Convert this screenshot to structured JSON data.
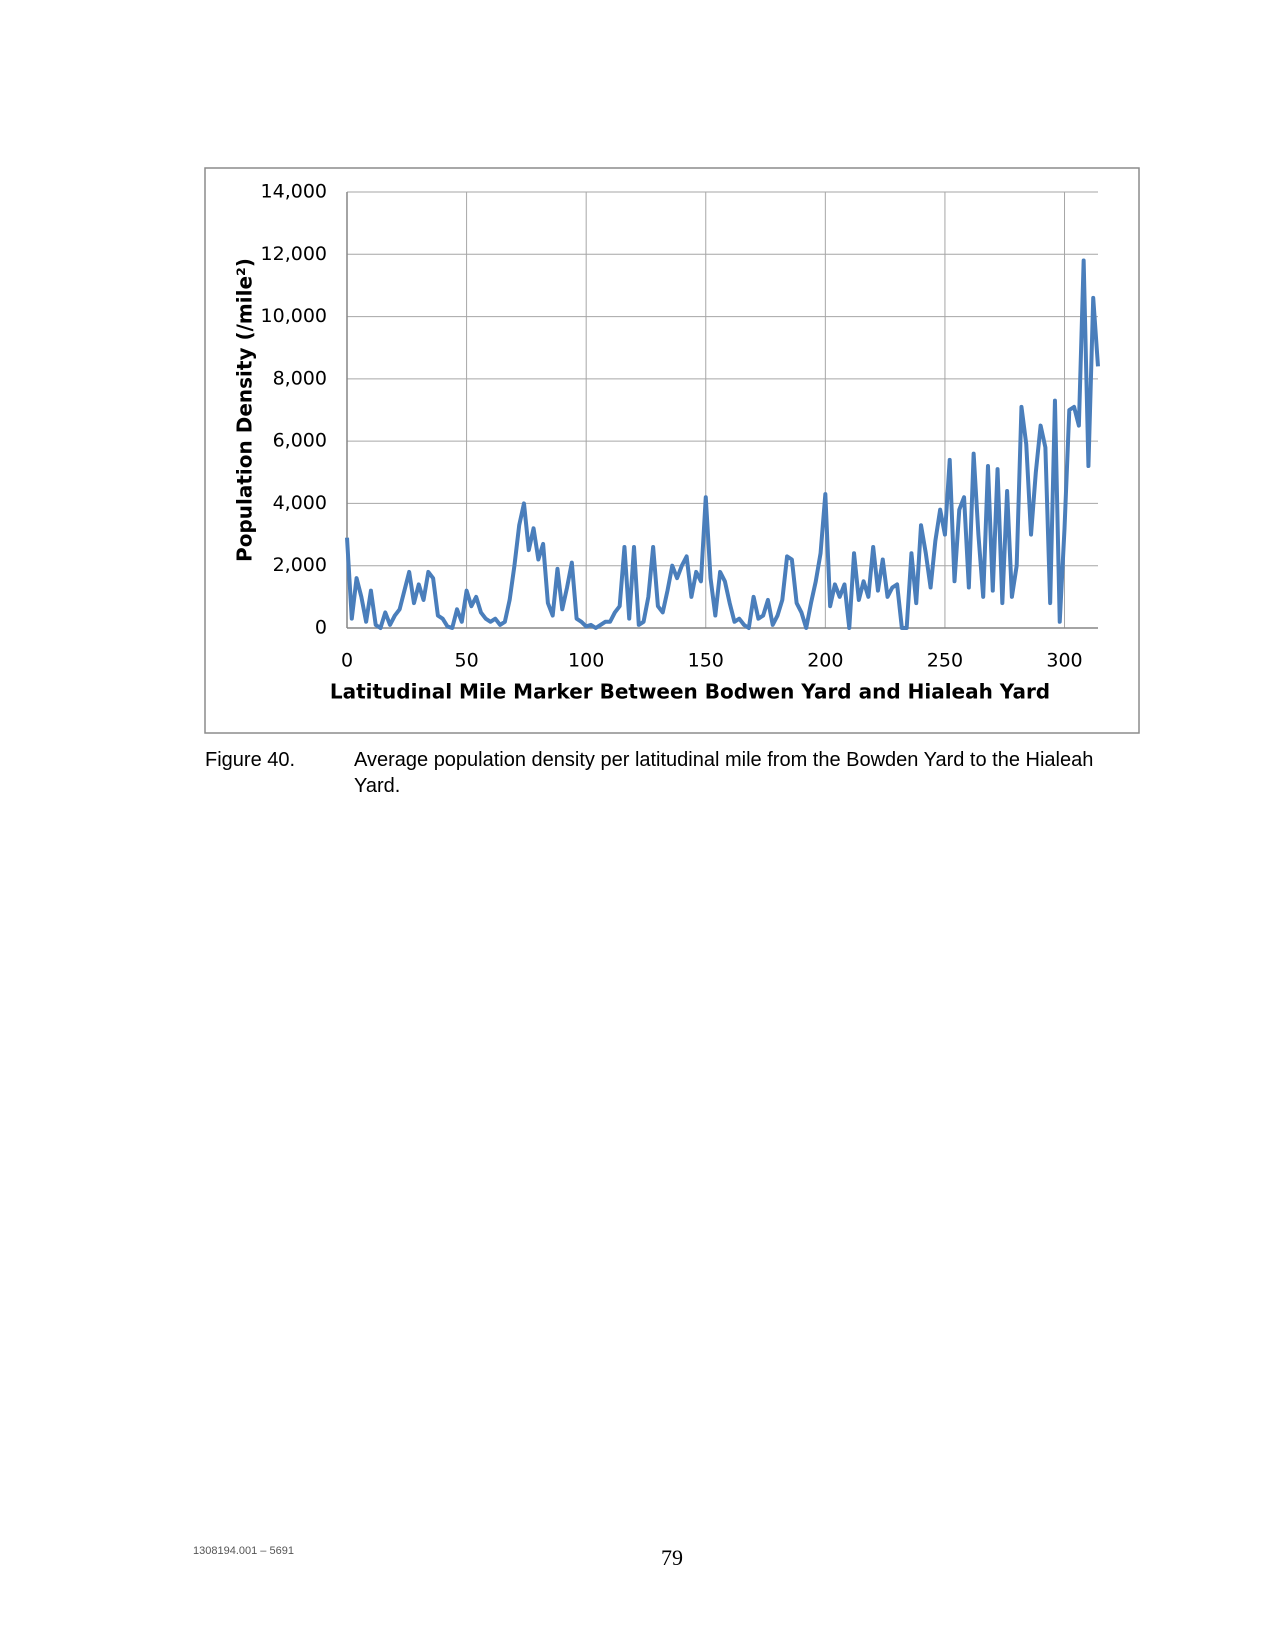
{
  "chart_data": {
    "type": "line",
    "y_label": "Population Density (/mile²)",
    "x_label": "Latitudinal Mile Marker Between Bodwen Yard and Hialeah Yard",
    "color": "#4a7ebb",
    "grid": true,
    "xlim": [
      0,
      314
    ],
    "ylim": [
      0,
      14000
    ],
    "xticks": [
      0,
      50,
      100,
      150,
      200,
      250,
      300
    ],
    "yticks": [
      0,
      {
        "value": 2000,
        "label": "2,000"
      },
      {
        "value": 4000,
        "label": "4,000"
      },
      {
        "value": 6000,
        "label": "6,000"
      },
      {
        "value": 8000,
        "label": "8,000"
      },
      {
        "value": 10000,
        "label": "10,000"
      },
      {
        "value": 12000,
        "label": "12,000"
      },
      {
        "value": 14000,
        "label": "14,000"
      }
    ],
    "x": [
      0,
      2,
      4,
      6,
      8,
      10,
      12,
      14,
      16,
      18,
      20,
      22,
      24,
      26,
      28,
      30,
      32,
      34,
      36,
      38,
      40,
      42,
      44,
      46,
      48,
      50,
      52,
      54,
      56,
      58,
      60,
      62,
      64,
      66,
      68,
      70,
      72,
      74,
      76,
      78,
      80,
      82,
      84,
      86,
      88,
      90,
      92,
      94,
      96,
      98,
      100,
      102,
      104,
      106,
      108,
      110,
      112,
      114,
      116,
      118,
      120,
      122,
      124,
      126,
      128,
      130,
      132,
      134,
      136,
      138,
      140,
      142,
      144,
      146,
      148,
      150,
      152,
      154,
      156,
      158,
      160,
      162,
      164,
      166,
      168,
      170,
      172,
      174,
      176,
      178,
      180,
      182,
      184,
      186,
      188,
      190,
      192,
      194,
      196,
      198,
      200,
      202,
      204,
      206,
      208,
      210,
      212,
      214,
      216,
      218,
      220,
      222,
      224,
      226,
      228,
      230,
      232,
      234,
      236,
      238,
      240,
      242,
      244,
      246,
      248,
      250,
      252,
      254,
      256,
      258,
      260,
      262,
      264,
      266,
      268,
      270,
      272,
      274,
      276,
      278,
      280,
      282,
      284,
      286,
      288,
      290,
      292,
      294,
      296,
      298,
      300,
      302,
      304,
      306,
      308,
      310,
      312,
      314
    ],
    "values": [
      2900,
      300,
      1600,
      1000,
      200,
      1200,
      100,
      0,
      500,
      100,
      400,
      600,
      1200,
      1800,
      800,
      1400,
      900,
      1800,
      1600,
      400,
      300,
      50,
      0,
      600,
      200,
      1200,
      700,
      1000,
      500,
      300,
      200,
      300,
      100,
      200,
      900,
      2000,
      3300,
      4000,
      2500,
      3200,
      2200,
      2700,
      800,
      400,
      1900,
      600,
      1300,
      2100,
      300,
      200,
      50,
      100,
      0,
      100,
      200,
      200,
      500,
      700,
      2600,
      300,
      2600,
      100,
      200,
      1000,
      2600,
      700,
      500,
      1200,
      2000,
      1600,
      2000,
      2300,
      1000,
      1800,
      1500,
      4200,
      1600,
      400,
      1800,
      1500,
      800,
      200,
      300,
      100,
      0,
      1000,
      300,
      400,
      900,
      100,
      400,
      900,
      2300,
      2200,
      800,
      500,
      0,
      800,
      1500,
      2400,
      4300,
      700,
      1400,
      1000,
      1400,
      0,
      2400,
      900,
      1500,
      1000,
      2600,
      1200,
      2200,
      1000,
      1300,
      1400,
      0,
      0,
      2400,
      800,
      3300,
      2400,
      1300,
      2800,
      3800,
      3000,
      5400,
      1500,
      3800,
      4200,
      1300,
      5600,
      3000,
      1000,
      5200,
      1200,
      5100,
      800,
      4400,
      1000,
      2000,
      7100,
      5900,
      3000,
      5000,
      6500,
      5800,
      800,
      7300,
      200,
      3200,
      7000,
      7100,
      6500,
      11800,
      5200,
      10600,
      8400
    ]
  },
  "caption": {
    "label": "Figure 40.",
    "text": "Average population density per latitudinal mile from the Bowden Yard to the Hialeah Yard."
  },
  "footer": {
    "doc_id": "1308194.001 – 5691",
    "page": "79"
  }
}
